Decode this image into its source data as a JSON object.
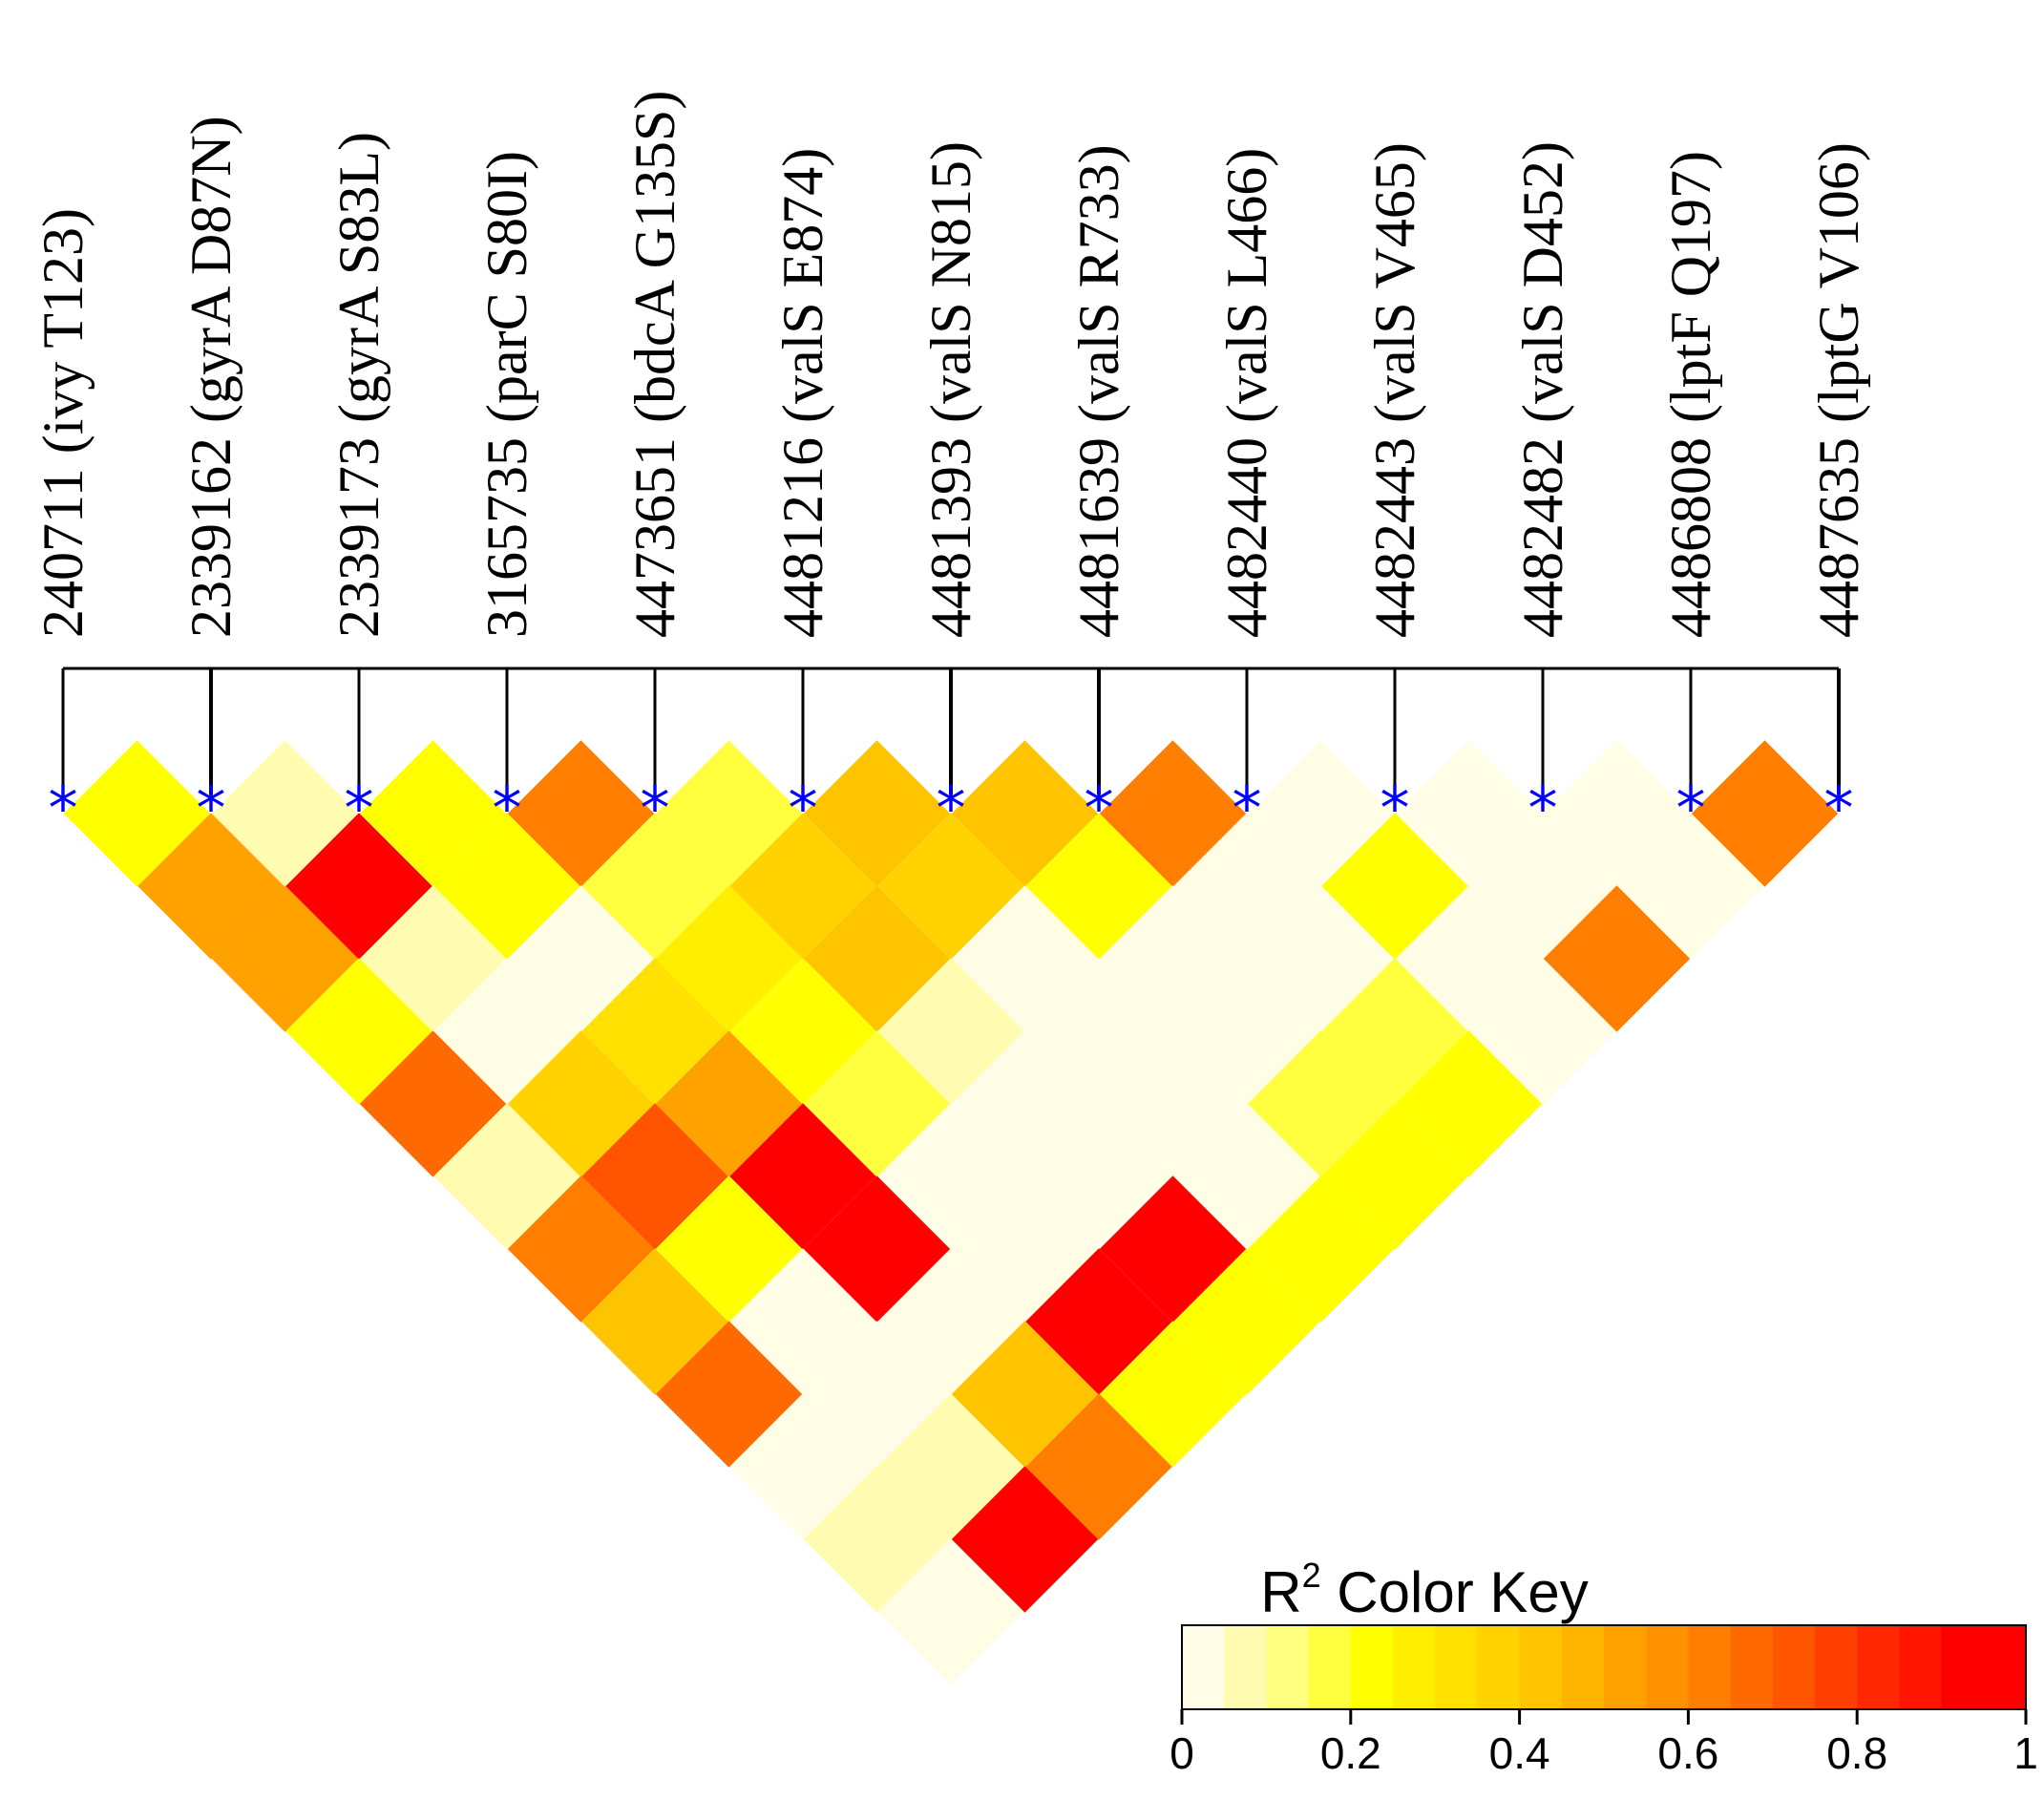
{
  "chart_data": {
    "type": "heatmap",
    "title": "",
    "snps": [
      "240711 (ivy T123)",
      "2339162 (gyrA D87N)",
      "2339173 (gyrA S83L)",
      "3165735 (parC S80I)",
      "4473651 (bdcA G135S)",
      "4481216 (valS E874)",
      "4481393 (valS N815)",
      "4481639 (valS R733)",
      "4482440 (valS L466)",
      "4482443 (valS V465)",
      "4482482 (valS D452)",
      "4486808 (lptF Q197)",
      "4487635 (lptG V106)"
    ],
    "marker_symbol": "*",
    "r2_matrix": [
      [
        0.2,
        0.07,
        0.2,
        0.6,
        0.15,
        0.4,
        0.4,
        0.6,
        0.02,
        0.02,
        0.02,
        0.6
      ],
      [
        0.5,
        1.0,
        0.2,
        0.15,
        0.35,
        0.35,
        0.2,
        0.02,
        0.2,
        0.02,
        0.02
      ],
      [
        0.5,
        0.06,
        0.02,
        0.25,
        0.4,
        0.02,
        0.02,
        0.02,
        0.02,
        0.6
      ],
      [
        0.2,
        0.02,
        0.3,
        0.2,
        0.05,
        0.02,
        0.02,
        0.15,
        0.02
      ],
      [
        0.65,
        0.35,
        0.5,
        0.15,
        0.02,
        0.02,
        0.15,
        0.2
      ],
      [
        0.05,
        0.7,
        1.0,
        0.02,
        0.02,
        0.02,
        0.2
      ],
      [
        0.6,
        0.2,
        1.0,
        0.02,
        1.0,
        0.2
      ],
      [
        0.4,
        0.02,
        0.02,
        1.0,
        0.2
      ],
      [
        0.65,
        0.02,
        0.4,
        0.2
      ],
      [
        0.02,
        0.07,
        0.6
      ],
      [
        0.05,
        1.0
      ],
      [
        0.0
      ]
    ],
    "note": "r2_matrix[d-1][i] = R^2 between SNP i and SNP i+d",
    "color_key": {
      "title_main": "R",
      "title_sup": "2",
      "title_rest": " Color Key",
      "range": [
        0,
        1
      ],
      "ticks": [
        "0",
        "0.2",
        "0.4",
        "0.6",
        "0.8",
        "1"
      ],
      "tick_values": [
        0,
        0.2,
        0.4,
        0.6,
        0.8,
        1
      ],
      "colors": [
        "#fffde6",
        "#fffbb0",
        "#ffff80",
        "#ffff40",
        "#ffff00",
        "#ffee00",
        "#ffe000",
        "#ffd200",
        "#ffc400",
        "#ffb400",
        "#ffa200",
        "#ff9000",
        "#ff7e00",
        "#ff6a00",
        "#ff5500",
        "#ff3f00",
        "#ff2800",
        "#ff1400",
        "#ff0000",
        "#ff0000"
      ]
    }
  }
}
